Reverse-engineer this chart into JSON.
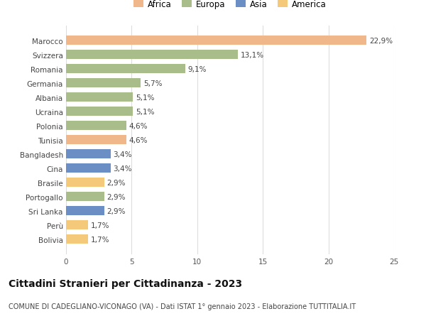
{
  "categories": [
    "Bolivia",
    "Perù",
    "Sri Lanka",
    "Portogallo",
    "Brasile",
    "Cina",
    "Bangladesh",
    "Tunisia",
    "Polonia",
    "Ucraina",
    "Albania",
    "Germania",
    "Romania",
    "Svizzera",
    "Marocco"
  ],
  "values": [
    1.7,
    1.7,
    2.9,
    2.9,
    2.9,
    3.4,
    3.4,
    4.6,
    4.6,
    5.1,
    5.1,
    5.7,
    9.1,
    13.1,
    22.9
  ],
  "labels": [
    "1,7%",
    "1,7%",
    "2,9%",
    "2,9%",
    "2,9%",
    "3,4%",
    "3,4%",
    "4,6%",
    "4,6%",
    "5,1%",
    "5,1%",
    "5,7%",
    "9,1%",
    "13,1%",
    "22,9%"
  ],
  "colors": [
    "#F5C97A",
    "#F5C97A",
    "#6B8EC4",
    "#A8BD8A",
    "#F5C97A",
    "#6B8EC4",
    "#6B8EC4",
    "#F0B88A",
    "#A8BD8A",
    "#A8BD8A",
    "#A8BD8A",
    "#A8BD8A",
    "#A8BD8A",
    "#A8BD8A",
    "#F0B88A"
  ],
  "legend_labels": [
    "Africa",
    "Europa",
    "Asia",
    "America"
  ],
  "legend_colors": [
    "#F0B88A",
    "#A8BD8A",
    "#6B8EC4",
    "#F5C97A"
  ],
  "title": "Cittadini Stranieri per Cittadinanza - 2023",
  "subtitle": "COMUNE DI CADEGLIANO-VICONAGO (VA) - Dati ISTAT 1° gennaio 2023 - Elaborazione TUTTITALIA.IT",
  "xlim": [
    0,
    25
  ],
  "xticks": [
    0,
    5,
    10,
    15,
    20,
    25
  ],
  "background_color": "#ffffff",
  "bar_height": 0.65,
  "label_fontsize": 7.5,
  "tick_fontsize": 7.5,
  "ytick_fontsize": 7.5,
  "title_fontsize": 10,
  "subtitle_fontsize": 7,
  "legend_fontsize": 8.5
}
